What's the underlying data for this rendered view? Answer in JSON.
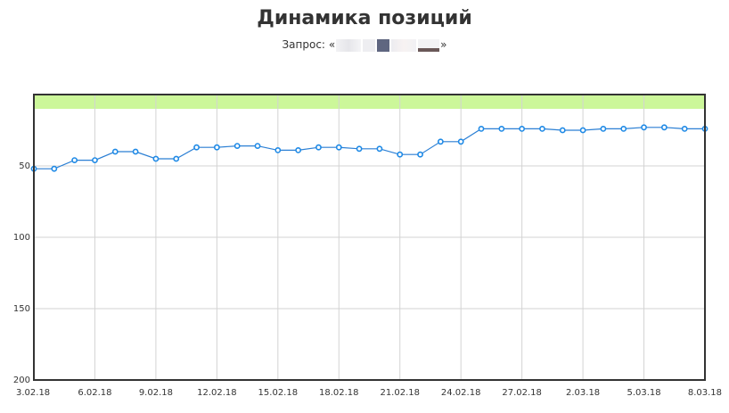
{
  "chart_data": {
    "type": "line",
    "title": "Динамика позиций",
    "subtitle_prefix": "Запрос:",
    "quote_open": "«",
    "quote_close": "»",
    "x": [
      "3.02.18",
      "4.02.18",
      "5.02.18",
      "6.02.18",
      "7.02.18",
      "8.02.18",
      "9.02.18",
      "10.02.18",
      "11.02.18",
      "12.02.18",
      "13.02.18",
      "14.02.18",
      "15.02.18",
      "16.02.18",
      "17.02.18",
      "18.02.18",
      "19.02.18",
      "20.02.18",
      "21.02.18",
      "22.02.18",
      "23.02.18",
      "24.02.18",
      "25.02.18",
      "26.02.18",
      "27.02.18",
      "28.02.18",
      "1.03.18",
      "2.03.18",
      "3.03.18",
      "4.03.18",
      "5.03.18",
      "6.03.18",
      "7.03.18",
      "8.03.18"
    ],
    "x_tick_labels": [
      "3.02.18",
      "6.02.18",
      "9.02.18",
      "12.02.18",
      "15.02.18",
      "18.02.18",
      "21.02.18",
      "24.02.18",
      "27.02.18",
      "2.03.18",
      "5.03.18",
      "8.03.18"
    ],
    "series": [
      {
        "values": [
          52,
          52,
          46,
          46,
          40,
          40,
          45,
          45,
          37,
          37,
          36,
          36,
          39,
          39,
          37,
          37,
          38,
          38,
          42,
          42,
          33,
          33,
          24,
          24,
          24,
          24,
          25,
          25,
          24,
          24,
          23,
          23,
          24,
          24
        ]
      }
    ],
    "ylim": [
      0,
      200
    ],
    "y_reversed": true,
    "y_tick_labels": [
      "50",
      "100",
      "150",
      "200"
    ],
    "top10_band": [
      0,
      10
    ],
    "grid": true,
    "colors": {
      "line": "#2b7fd4",
      "marker": "#1f8ae6",
      "band": "#ccf79a",
      "grid": "#d3d3d3",
      "axis": "#333333"
    }
  }
}
